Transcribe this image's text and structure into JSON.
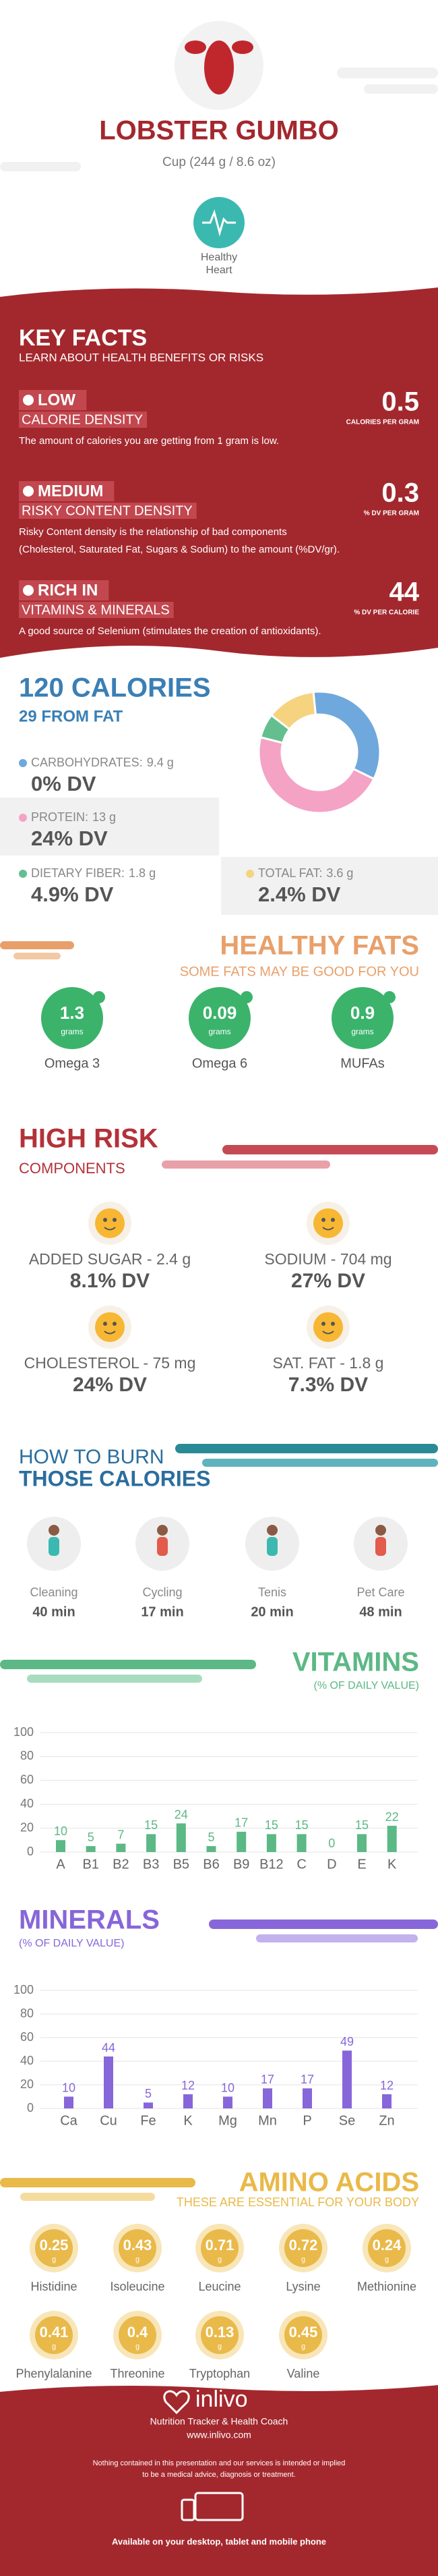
{
  "header": {
    "title": "LOBSTER GUMBO",
    "serving": "Cup (244 g / 8.6 oz)",
    "badge": [
      "Healthy",
      "Heart"
    ]
  },
  "key_facts": {
    "title": "KEY FACTS",
    "subtitle": "LEARN ABOUT HEALTH BENEFITS OR RISKS",
    "items": [
      {
        "level": "LOW",
        "label": "CALORIE DENSITY",
        "value": 0.5,
        "unit": "CALORIES PER GRAM",
        "description": [
          "The amount of calories you are getting from 1 gram is low."
        ]
      },
      {
        "level": "MEDIUM",
        "label": "RISKY CONTENT DENSITY",
        "value": 0.3,
        "unit": "% DV PER GRAM",
        "description": [
          "Risky Content density is the relationship of bad components",
          "(Cholesterol, Saturated Fat, Sugars & Sodium) to the amount (%DV/gr)."
        ]
      },
      {
        "level": "RICH IN",
        "label": "VITAMINS & MINERALS",
        "value": 44,
        "unit": "% DV PER CALORIE",
        "description": [
          "A good source of Selenium (stimulates the creation of antioxidants)."
        ]
      }
    ]
  },
  "calories": {
    "title": "120 CALORIES",
    "subtitle": "29 FROM FAT",
    "nutrients": [
      {
        "name": "CARBOHYDRATES:",
        "amount": 9.4,
        "unit": "g",
        "dv": "0% DV",
        "color": "#6fa8dc"
      },
      {
        "name": "PROTEIN:",
        "amount": 13,
        "unit": "g",
        "dv": "24% DV",
        "color": "#f4a3c4"
      },
      {
        "name": "DIETARY FIBER:",
        "amount": 1.8,
        "unit": "g",
        "dv": "4.9% DV",
        "color": "#63c08e"
      },
      {
        "name": "TOTAL FAT:",
        "amount": 3.6,
        "unit": "g",
        "dv": "2.4% DV",
        "color": "#f6d37f"
      }
    ]
  },
  "healthy_fats": {
    "title": "HEALTHY FATS",
    "subtitle": "SOME FATS MAY BE GOOD FOR YOU",
    "items": [
      {
        "name": "Omega 3",
        "value": 1.3,
        "unit": "grams"
      },
      {
        "name": "Omega 6",
        "value": 0.09,
        "unit": "grams"
      },
      {
        "name": "MUFAs",
        "value": 0.9,
        "unit": "grams"
      }
    ]
  },
  "high_risk": {
    "title": "HIGH RISK",
    "subtitle": "COMPONENTS",
    "items": [
      {
        "label": "ADDED SUGAR - 2.4 g",
        "dv": "8.1% DV"
      },
      {
        "label": "SODIUM - 704 mg",
        "dv": "27% DV"
      },
      {
        "label": "CHOLESTEROL - 75 mg",
        "dv": "24% DV"
      },
      {
        "label": "SAT. FAT - 1.8 g",
        "dv": "7.3% DV"
      }
    ]
  },
  "burn": {
    "title": [
      "HOW TO BURN",
      "THOSE CALORIES"
    ],
    "activities": [
      {
        "name": "Cleaning",
        "time": "40 min"
      },
      {
        "name": "Cycling",
        "time": "17 min"
      },
      {
        "name": "Tenis",
        "time": "20 min"
      },
      {
        "name": "Pet Care",
        "time": "48 min"
      }
    ]
  },
  "vitamins": {
    "type": "bar",
    "title": "VITAMINS",
    "subtitle": "(% OF DAILY VALUE)",
    "categories": [
      "A",
      "B1",
      "B2",
      "B3",
      "B5",
      "B6",
      "B9",
      "B12",
      "C",
      "D",
      "E",
      "K"
    ],
    "values": [
      10,
      5,
      7,
      15,
      24,
      5,
      17,
      15,
      15,
      0,
      15,
      22
    ],
    "ylim": [
      0,
      100
    ],
    "yticks": [
      0,
      20,
      40,
      60,
      80,
      100
    ],
    "color": "#5cb885"
  },
  "minerals": {
    "type": "bar",
    "title": "MINERALS",
    "subtitle": "(% OF DAILY VALUE)",
    "categories": [
      "Ca",
      "Cu",
      "Fe",
      "K",
      "Mg",
      "Mn",
      "P",
      "Se",
      "Zn"
    ],
    "values": [
      10,
      44,
      5,
      12,
      10,
      17,
      17,
      49,
      12
    ],
    "ylim": [
      0,
      100
    ],
    "yticks": [
      0,
      20,
      40,
      60,
      80,
      100
    ],
    "color": "#8766d9"
  },
  "amino_acids": {
    "title": "AMINO ACIDS",
    "subtitle": "THESE ARE ESSENTIAL FOR YOUR BODY",
    "unit": "g",
    "items": [
      {
        "name": "Histidine",
        "value": 0.25
      },
      {
        "name": "Isoleucine",
        "value": 0.43
      },
      {
        "name": "Leucine",
        "value": 0.71
      },
      {
        "name": "Lysine",
        "value": 0.72
      },
      {
        "name": "Methionine",
        "value": 0.24
      },
      {
        "name": "Phenylalanine",
        "value": 0.41
      },
      {
        "name": "Threonine",
        "value": 0.4
      },
      {
        "name": "Tryptophan",
        "value": 0.13
      },
      {
        "name": "Valine",
        "value": 0.45
      }
    ]
  },
  "footer": {
    "brand": "inlivo",
    "tagline": "Nutrition Tracker & Health Coach",
    "url": "www.inlivo.com",
    "disclaimer": [
      "Nothing contained in this presentation and our services is intended or implied",
      "to be a medical advice, diagnosis or treatment."
    ],
    "availability": "Available on your desktop, tablet and mobile phone"
  }
}
